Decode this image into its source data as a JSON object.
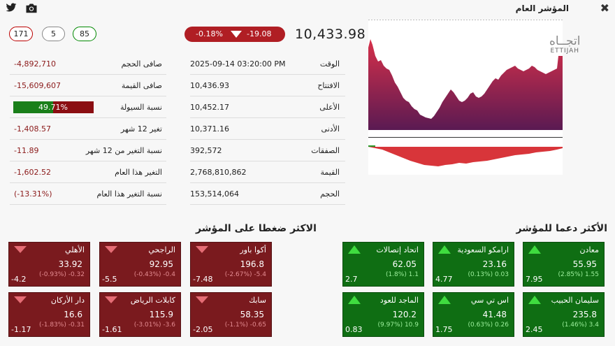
{
  "header": {
    "title": "المؤشر العام",
    "twitter_icon": "twitter-icon",
    "camera_icon": "camera-icon",
    "close_icon": "close-icon",
    "close_glyph": "✖"
  },
  "breadth": {
    "declining": "171",
    "unchanged": "5",
    "advancing": "85"
  },
  "index": {
    "change_pct": "-0.18%",
    "change_points": "-19.08",
    "value": "10,433.98",
    "direction": "down"
  },
  "details": [
    {
      "label": "الوقت",
      "value": "2025-09-14 03:20:00 PM"
    },
    {
      "label": "الافتتاح",
      "value": "10,436.93"
    },
    {
      "label": "الأعلى",
      "value": "10,452.17"
    },
    {
      "label": "الأدنى",
      "value": "10,371.16"
    },
    {
      "label": "الصفقات",
      "value": "392,572"
    },
    {
      "label": "القيمة",
      "value": "2,768,810,862"
    },
    {
      "label": "الحجم",
      "value": "153,514,064"
    }
  ],
  "stats": [
    {
      "label": "صافى الحجم",
      "value": "-4,892,710"
    },
    {
      "label": "صافى القيمة",
      "value": "-15,609,607"
    },
    {
      "label": "نسبة السيولة",
      "value": "49.71%",
      "fraction": 0.4971
    },
    {
      "label": "تغير 12 شهر",
      "value": "-1,408.57"
    },
    {
      "label": "نسبة التغير من 12 شهر",
      "value": "-11.89"
    },
    {
      "label": "التغير هذا العام",
      "value": "-1,602.52"
    },
    {
      "label": "نسبة التغير هذا العام",
      "value": "(-13.31%)"
    }
  ],
  "logo": {
    "arabic": "اتجــاه",
    "latin": "ETTIJAH"
  },
  "colors": {
    "down": "#7a1a1e",
    "up": "#0f6e13",
    "accent_red": "#b01e24"
  },
  "pressure": {
    "title": "الاكثر ضغطا على المؤشر",
    "cards": [
      {
        "name": "أكوا باور",
        "price": "196.8",
        "chg": "(-2.67%) -5.4",
        "vol": "-7.48"
      },
      {
        "name": "الراجحي",
        "price": "92.95",
        "chg": "(-0.43%) -0.4",
        "vol": "-5.5"
      },
      {
        "name": "الأهلي",
        "price": "33.92",
        "chg": "(-0.93%) -0.32",
        "vol": "-4.2"
      },
      {
        "name": "سابك",
        "price": "58.35",
        "chg": "(-1.1%) -0.65",
        "vol": "-2.05"
      },
      {
        "name": "كابلات الرياض",
        "price": "115.9",
        "chg": "(-3.01%) -3.6",
        "vol": "-1.61"
      },
      {
        "name": "دار الأركان",
        "price": "16.6",
        "chg": "(-1.83%) -0.31",
        "vol": "-1.17"
      }
    ]
  },
  "support": {
    "title": "الأكثر دعما للمؤشر",
    "cards": [
      {
        "name": "معادن",
        "price": "55.95",
        "chg": "(2.85%) 1.55",
        "vol": "7.95"
      },
      {
        "name": "ارامكو السعودية",
        "price": "23.16",
        "chg": "(0.13%) 0.03",
        "vol": "4.77"
      },
      {
        "name": "اتحاد إتصالات",
        "price": "62.05",
        "chg": "(1.8%) 1.1",
        "vol": "2.7"
      },
      {
        "name": "سليمان الحبيب",
        "price": "235.8",
        "chg": "(1.46%) 3.4",
        "vol": "2.45"
      },
      {
        "name": "اس تي سي",
        "price": "41.48",
        "chg": "(0.63%) 0.26",
        "vol": "1.75"
      },
      {
        "name": "الماجد للعود",
        "price": "120.2",
        "chg": "(9.97%) 10.9",
        "vol": "0.83"
      }
    ]
  }
}
